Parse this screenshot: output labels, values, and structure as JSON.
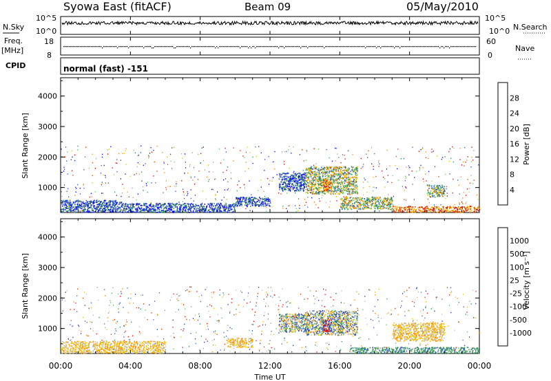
{
  "header": {
    "title": "Syowa East (fitACF)",
    "beam": "Beam 09",
    "date": "05/May/2010"
  },
  "status_panels": {
    "nsky_label": "N.Sky",
    "nsky_ticks": [
      "10^5",
      "10^0"
    ],
    "nsearch_label": "N.Search",
    "nsearch_ticks": [
      "10^5",
      "10^0"
    ],
    "freq_label": "Freq.",
    "freq_unit": "[MHz]",
    "freq_ticks": [
      "18",
      "8"
    ],
    "nave_label": "Nave",
    "nave_ticks": [
      "60",
      "0"
    ],
    "cpid_label": "CPID",
    "cpid_value": "normal (fast) -151"
  },
  "chart_data": [
    {
      "type": "heatmap",
      "name": "power",
      "xlabel": "",
      "ylabel": "Slant Range [km]",
      "x_range_hours": [
        0,
        24
      ],
      "y_range_km": [
        180,
        4600
      ],
      "y_ticks": [
        "1000",
        "2000",
        "3000",
        "4000"
      ],
      "colorbar": {
        "label": "Power [dB]",
        "ticks": [
          "4",
          "8",
          "12",
          "16",
          "20",
          "24",
          "28"
        ],
        "colors": [
          "#0000ff",
          "#2a52be",
          "#2e8b57",
          "#66cc66",
          "#f0c000",
          "#ff8c00",
          "#e23000",
          "#cc0000"
        ]
      },
      "regions": [
        {
          "t": [
            0.0,
            3.5
          ],
          "r": [
            200,
            600
          ],
          "level": "low"
        },
        {
          "t": [
            3.5,
            10.0
          ],
          "r": [
            200,
            500
          ],
          "level": "low"
        },
        {
          "t": [
            10.0,
            12.0
          ],
          "r": [
            400,
            700
          ],
          "level": "low"
        },
        {
          "t": [
            12.5,
            14.0
          ],
          "r": [
            900,
            1500
          ],
          "level": "low"
        },
        {
          "t": [
            14.0,
            17.0
          ],
          "r": [
            800,
            1700
          ],
          "level": "mid"
        },
        {
          "t": [
            15.0,
            15.5
          ],
          "r": [
            900,
            1300
          ],
          "level": "high"
        },
        {
          "t": [
            16.0,
            19.0
          ],
          "r": [
            300,
            700
          ],
          "level": "mid"
        },
        {
          "t": [
            19.0,
            24.0
          ],
          "r": [
            200,
            400
          ],
          "level": "high"
        },
        {
          "t": [
            21.0,
            22.0
          ],
          "r": [
            700,
            1100
          ],
          "level": "mid"
        }
      ]
    },
    {
      "type": "heatmap",
      "name": "velocity",
      "xlabel": "Time UT",
      "ylabel": "Slant Range [km]",
      "x_range_hours": [
        0,
        24
      ],
      "x_ticks": [
        "00:00",
        "04:00",
        "08:00",
        "12:00",
        "16:00",
        "20:00",
        "00:00"
      ],
      "y_range_km": [
        180,
        4600
      ],
      "y_ticks": [
        "1000",
        "2000",
        "3000",
        "4000"
      ],
      "colorbar": {
        "label": "Velocity [m s⁻¹]",
        "ticks": [
          "1000",
          "500",
          "100",
          "25",
          "-25",
          "-100",
          "-500",
          "-1000"
        ],
        "colors": [
          "#1c2fa8",
          "#3a5fcd",
          "#2e8b57",
          "#66bb66",
          "#c0c0c0",
          "#f0c000",
          "#ff8c00",
          "#e23000",
          "#ff0000"
        ]
      },
      "regions": [
        {
          "t": [
            0.0,
            6.0
          ],
          "r": [
            200,
            600
          ],
          "level": "neg"
        },
        {
          "t": [
            9.5,
            11.0
          ],
          "r": [
            400,
            700
          ],
          "level": "neg"
        },
        {
          "t": [
            12.5,
            14.0
          ],
          "r": [
            900,
            1500
          ],
          "level": "mixed"
        },
        {
          "t": [
            14.0,
            17.0
          ],
          "r": [
            800,
            1600
          ],
          "level": "mixed"
        },
        {
          "t": [
            15.0,
            15.5
          ],
          "r": [
            900,
            1300
          ],
          "level": "strong"
        },
        {
          "t": [
            16.5,
            24.0
          ],
          "r": [
            200,
            400
          ],
          "level": "pos"
        },
        {
          "t": [
            19.0,
            22.0
          ],
          "r": [
            600,
            1200
          ],
          "level": "neg"
        }
      ]
    }
  ]
}
